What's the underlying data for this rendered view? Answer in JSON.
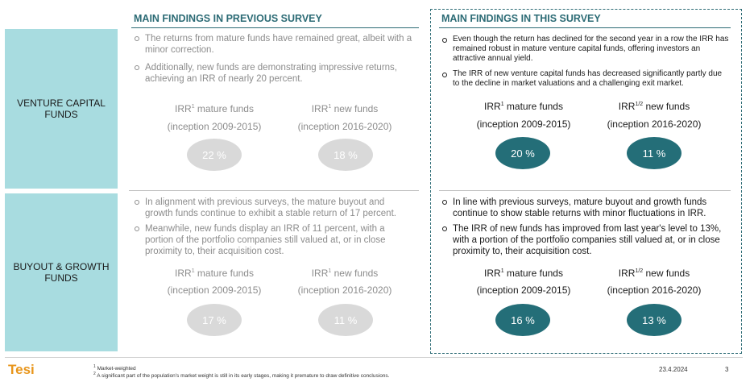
{
  "columns": {
    "previous_title": "MAIN FINDINGS IN PREVIOUS SURVEY",
    "current_title": "MAIN FINDINGS IN THIS SURVEY"
  },
  "sections": {
    "vc": {
      "label": "VENTURE CAPITAL FUNDS",
      "previous_bullets": [
        "The returns from mature funds have remained great, albeit with a minor correction.",
        "Additionally, new funds are demonstrating impressive returns, achieving an IRR of nearly 20 percent."
      ],
      "current_bullets": [
        "Even though the return has declined for the second year in a row the IRR has remained robust in mature venture capital funds, offering investors an attractive annual yield.",
        "The IRR of new venture capital funds has decreased significantly partly due to the decline in market valuations and a challenging exit market."
      ],
      "prev_mature_label": "IRR",
      "prev_mature_sup": "1",
      "prev_mature_suffix": " mature funds",
      "prev_mature_period": "(inception 2009-2015)",
      "prev_new_label": "IRR",
      "prev_new_sup": "1",
      "prev_new_suffix": " new funds",
      "prev_new_period": "(inception 2016-2020)",
      "curr_mature_label": "IRR",
      "curr_mature_sup": "1",
      "curr_mature_suffix": " mature funds",
      "curr_mature_period": "(inception 2009-2015)",
      "curr_new_label": "IRR",
      "curr_new_sup": "1/2",
      "curr_new_suffix": " new funds",
      "curr_new_period": "(inception 2016-2020)",
      "prev_mature_value": "22 %",
      "prev_new_value": "18 %",
      "curr_mature_value": "20 %",
      "curr_new_value": "11 %"
    },
    "bo": {
      "label": "BUYOUT & GROWTH FUNDS",
      "previous_bullets": [
        "In alignment with previous surveys, the mature buyout and growth funds continue to exhibit a stable return of 17 percent.",
        "Meanwhile, new funds display an IRR of 11 percent, with a portion of the portfolio companies still valued at, or in close proximity to, their acquisition cost."
      ],
      "current_bullets": [
        "In line with previous surveys, mature buyout and growth funds continue to show stable returns with minor fluctuations in IRR.",
        "The IRR of new funds has improved from last year's level to 13%, with a portion of the portfolio companies still valued at, or in close proximity to, their acquisition cost."
      ],
      "prev_mature_label": "IRR",
      "prev_mature_sup": "1",
      "prev_mature_suffix": " mature funds",
      "prev_mature_period": "(inception 2009-2015)",
      "prev_new_label": "IRR",
      "prev_new_sup": "1",
      "prev_new_suffix": " new funds",
      "prev_new_period": "(inception 2016-2020)",
      "curr_mature_label": "IRR",
      "curr_mature_sup": "1",
      "curr_mature_suffix": " mature funds",
      "curr_mature_period": "(inception 2009-2015)",
      "curr_new_label": "IRR",
      "curr_new_sup": "1/2",
      "curr_new_suffix": " new funds",
      "curr_new_period": "(inception 2016-2020)",
      "prev_mature_value": "17 %",
      "prev_new_value": "11 %",
      "curr_mature_value": "16 %",
      "curr_new_value": "13 %"
    }
  },
  "footer": {
    "logo": "Tesi",
    "fn1_num": "1",
    "fn1_text": " Market-weighted",
    "fn2_num": "2",
    "fn2_text": " A significant part of the population's market weight is still in its early stages, making it premature to draw definitive conclusions.",
    "date": "23.4.2024",
    "page": "3"
  },
  "colors": {
    "teal": "#246e78",
    "side": "#a8dce0",
    "grey_oval": "#d9d9d9",
    "logo": "#e8961c"
  }
}
